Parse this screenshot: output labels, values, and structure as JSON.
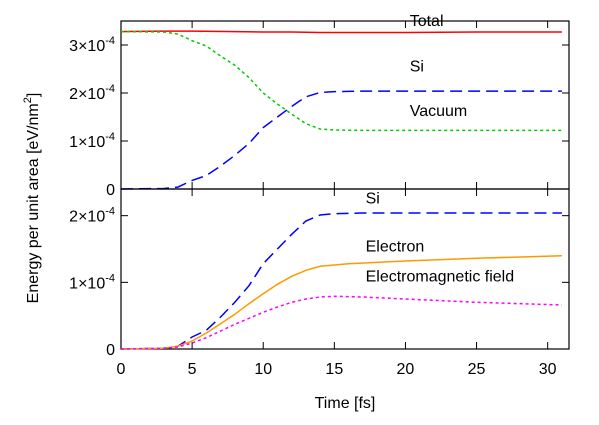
{
  "chart_data": {
    "type": "line",
    "xlabel": "Time [fs]",
    "ylabel": "Energy per unit area [eV/nm",
    "ylabel_sup": "2",
    "ylabel_close": "]",
    "xlim": [
      0,
      31.5
    ],
    "xticks": [
      0,
      5,
      10,
      15,
      20,
      25,
      30
    ],
    "xtick_labels": [
      "0",
      "5",
      "10",
      "15",
      "20",
      "25",
      "30"
    ],
    "panels": [
      {
        "ylim": [
          0,
          0.00035
        ],
        "yticks": [
          {
            "value": 0,
            "mantissa": "0",
            "exp": ""
          },
          {
            "value": 0.0001,
            "mantissa": "1×10",
            "exp": "-4"
          },
          {
            "value": 0.0002,
            "mantissa": "2×10",
            "exp": "-4"
          },
          {
            "value": 0.0003,
            "mantissa": "3×10",
            "exp": "-4"
          }
        ],
        "annotations": [
          {
            "text": "Total",
            "x": 20.3,
            "y": 0.00034
          },
          {
            "text": "Si",
            "x": 20.3,
            "y": 0.000245
          },
          {
            "text": "Vacuum",
            "x": 20.3,
            "y": 0.000152
          }
        ],
        "series": [
          {
            "name": "Total",
            "color": "#ff0000",
            "dash": "solid",
            "x": [
              0,
              3,
              5,
              8,
              10,
              12,
              14,
              16,
              20,
              25,
              31
            ],
            "y": [
              0.000328,
              0.000329,
              0.000329,
              0.000328,
              0.000327,
              0.000327,
              0.000326,
              0.000326,
              0.000326,
              0.000327,
              0.000327
            ]
          },
          {
            "name": "Si",
            "color": "#0000ff",
            "dash": "dashed",
            "x": [
              0,
              3,
              4,
              5,
              6,
              7,
              8,
              9,
              10,
              11,
              12,
              13,
              14,
              15,
              17,
              20,
              25,
              31
            ],
            "y": [
              0,
              1e-06,
              4e-06,
              1.8e-05,
              2.8e-05,
              4.8e-05,
              7e-05,
              9.5e-05,
              0.000128,
              0.00015,
              0.000172,
              0.000192,
              0.000201,
              0.000203,
              0.000204,
              0.000204,
              0.000204,
              0.000204
            ]
          },
          {
            "name": "Vacuum",
            "color": "#00cc00",
            "dash": "dotted",
            "x": [
              0,
              3,
              4,
              5,
              6,
              7,
              8,
              9,
              10,
              11,
              12,
              13,
              14,
              15,
              17,
              20,
              25,
              31
            ],
            "y": [
              0.000328,
              0.000327,
              0.000323,
              0.000309,
              0.000298,
              0.000277,
              0.000258,
              0.000232,
              0.0002,
              0.000177,
              0.000156,
              0.000136,
              0.000125,
              0.000123,
              0.000122,
              0.000122,
              0.000122,
              0.000122
            ]
          }
        ]
      },
      {
        "ylim": [
          0,
          0.00024
        ],
        "yticks": [
          {
            "value": 0,
            "mantissa": "0",
            "exp": ""
          },
          {
            "value": 0.0001,
            "mantissa": "1×10",
            "exp": "-4"
          },
          {
            "value": 0.0002,
            "mantissa": "2×10",
            "exp": "-4"
          }
        ],
        "annotations": [
          {
            "text": "Si",
            "x": 17.2,
            "y": 0.000218
          },
          {
            "text": "Electron",
            "x": 17.2,
            "y": 0.000146
          },
          {
            "text": "Electromagnetic field",
            "x": 17.2,
            "y": 0.000101
          }
        ],
        "series": [
          {
            "name": "Si",
            "color": "#0000ff",
            "dash": "dashed",
            "x": [
              0,
              3,
              4,
              5,
              6,
              7,
              8,
              9,
              10,
              11,
              12,
              13,
              14,
              15,
              17,
              20,
              25,
              31
            ],
            "y": [
              0,
              1e-06,
              4e-06,
              1.8e-05,
              2.8e-05,
              4.8e-05,
              7e-05,
              9.5e-05,
              0.000128,
              0.00015,
              0.000172,
              0.000192,
              0.000201,
              0.000203,
              0.000204,
              0.000204,
              0.000204,
              0.000204
            ]
          },
          {
            "name": "Electron",
            "color": "#ff9900",
            "dash": "solid",
            "x": [
              0,
              3,
              4,
              5,
              6,
              7,
              8,
              9,
              10,
              11,
              12,
              13,
              14,
              16,
              20,
              25,
              31
            ],
            "y": [
              0,
              1e-06,
              4e-06,
              1.2e-05,
              2.4e-05,
              3.8e-05,
              5.2e-05,
              6.8e-05,
              8.3e-05,
              9.7e-05,
              0.000109,
              0.000118,
              0.000124,
              0.000128,
              0.000132,
              0.000136,
              0.00014
            ]
          },
          {
            "name": "Electromagnetic field",
            "color": "#ff00ff",
            "dash": "dotted",
            "x": [
              0,
              3,
              4,
              5,
              6,
              7,
              8,
              9,
              10,
              11,
              12,
              13,
              14,
              15,
              17,
              20,
              25,
              31
            ],
            "y": [
              0,
              1e-06,
              3e-06,
              9e-06,
              1.7e-05,
              2.7e-05,
              3.7e-05,
              4.6e-05,
              5.5e-05,
              6.3e-05,
              7e-05,
              7.5e-05,
              7.8e-05,
              7.9e-05,
              7.8e-05,
              7.5e-05,
              7e-05,
              6.6e-05
            ]
          }
        ]
      }
    ]
  }
}
